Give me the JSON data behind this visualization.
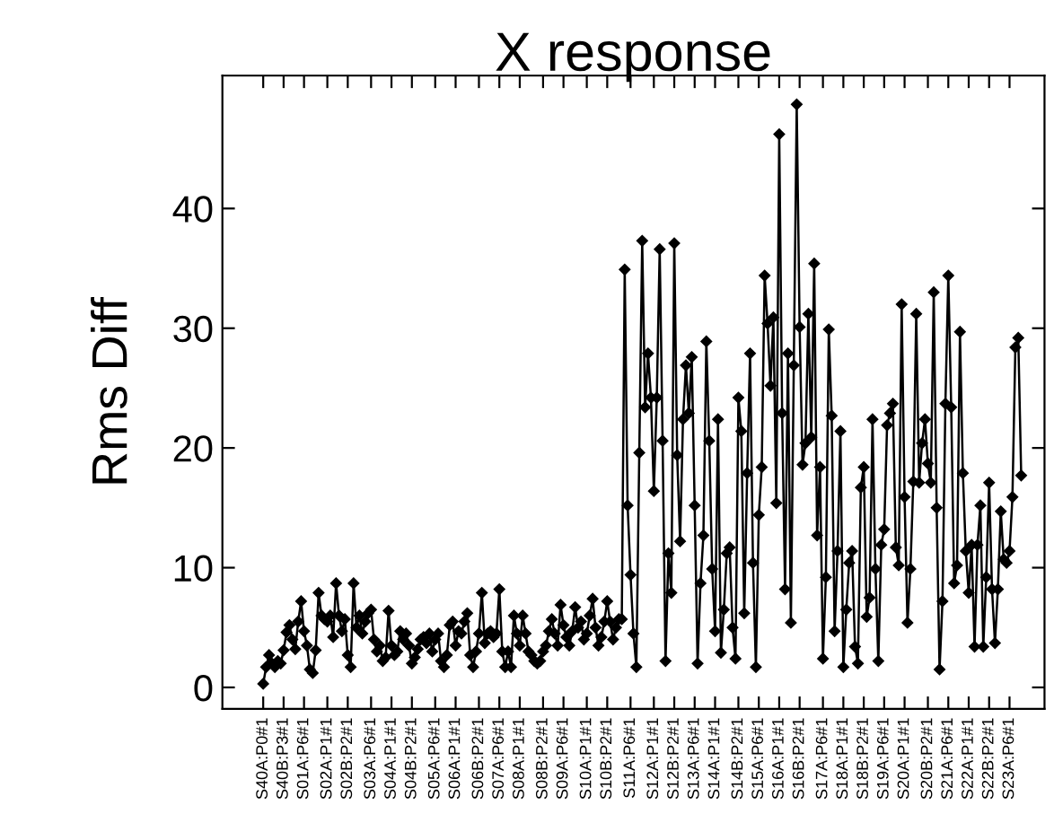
{
  "chart_data": {
    "type": "line",
    "title": "X response",
    "ylabel": "Rms Diff",
    "categories": [
      "S40A:P0#1",
      null,
      null,
      null,
      null,
      null,
      null,
      "S40B:P3#1",
      null,
      null,
      null,
      null,
      null,
      null,
      "S01A:P6#1",
      null,
      null,
      null,
      null,
      null,
      null,
      null,
      "S02A:P1#1",
      null,
      null,
      null,
      null,
      null,
      null,
      "S02B:P2#1",
      null,
      null,
      null,
      null,
      null,
      null,
      null,
      "S03A:P6#1",
      null,
      null,
      null,
      null,
      null,
      null,
      "S04A:P1#1",
      null,
      null,
      null,
      null,
      null,
      null,
      "S04B:P2#1",
      null,
      null,
      null,
      null,
      null,
      null,
      null,
      "S05A:P6#1",
      null,
      null,
      null,
      null,
      null,
      null,
      "S06A:P1#1",
      null,
      null,
      null,
      null,
      null,
      null,
      null,
      "S06B:P2#1",
      null,
      null,
      null,
      null,
      null,
      null,
      "S07A:P6#1",
      null,
      null,
      null,
      null,
      null,
      null,
      "S08A:P1#1",
      null,
      null,
      null,
      null,
      null,
      null,
      null,
      "S08B:P2#1",
      null,
      null,
      null,
      null,
      null,
      null,
      "S09A:P6#1",
      null,
      null,
      null,
      null,
      null,
      null,
      null,
      "S10A:P1#1",
      null,
      null,
      null,
      null,
      null,
      null,
      "S10B:P2#1",
      null,
      null,
      null,
      null,
      null,
      null,
      null,
      "S11A:P6#1",
      null,
      null,
      null,
      null,
      null,
      null,
      null,
      "S12A:P1#1",
      null,
      null,
      null,
      null,
      null,
      null,
      "S12B:P2#1",
      null,
      null,
      null,
      null,
      null,
      null,
      "S13A:P6#1",
      null,
      null,
      null,
      null,
      null,
      null,
      "S14A:P1#1",
      null,
      null,
      null,
      null,
      null,
      null,
      null,
      "S14B:P2#1",
      null,
      null,
      null,
      null,
      null,
      null,
      "S15A:P6#1",
      null,
      null,
      null,
      null,
      null,
      null,
      "S16A:P1#1",
      null,
      null,
      null,
      null,
      null,
      null,
      "S16B:P2#1",
      null,
      null,
      null,
      null,
      null,
      null,
      null,
      "S17A:P6#1",
      null,
      null,
      null,
      null,
      null,
      null,
      "S18A:P1#1",
      null,
      null,
      null,
      null,
      null,
      null,
      "S18B:P2#1",
      null,
      null,
      null,
      null,
      null,
      null,
      "S19A:P6#1",
      null,
      null,
      null,
      null,
      null,
      null,
      "S20A:P1#1",
      null,
      null,
      null,
      null,
      null,
      null,
      null,
      "S20B:P2#1",
      null,
      null,
      null,
      null,
      null,
      null,
      "S21A:P6#1",
      null,
      null,
      null,
      null,
      null,
      null,
      "S22A:P1#1",
      null,
      null,
      null,
      null,
      null,
      null,
      "S22B:P2#1",
      null,
      null,
      null,
      null,
      null,
      null,
      "S23A:P6#1",
      null,
      null,
      null,
      null
    ],
    "series": [
      {
        "color": "#000000",
        "values": [
          0.3,
          1.7,
          2.7,
          2.0,
          1.7,
          2.2,
          2.0,
          3.1,
          4.6,
          5.2,
          4.0,
          3.2,
          5.5,
          7.2,
          4.7,
          3.5,
          1.5,
          1.2,
          3.1,
          7.9,
          6.0,
          5.7,
          5.5,
          6.0,
          4.2,
          8.7,
          6.0,
          4.7,
          5.7,
          2.7,
          1.7,
          8.7,
          5.0,
          6.0,
          4.5,
          5.5,
          6.2,
          6.5,
          4.0,
          3.0,
          3.5,
          2.2,
          2.5,
          6.4,
          3.5,
          2.7,
          3.0,
          4.7,
          4.0,
          4.5,
          3.5,
          2.0,
          2.5,
          3.2,
          4.0,
          4.2,
          3.7,
          4.5,
          3.0,
          4.0,
          4.5,
          2.2,
          1.7,
          2.7,
          5.2,
          5.5,
          3.5,
          4.7,
          4.5,
          5.5,
          6.2,
          2.7,
          1.7,
          3.0,
          4.5,
          7.9,
          3.7,
          4.5,
          4.7,
          4.2,
          4.5,
          8.2,
          3.0,
          1.7,
          3.0,
          1.7,
          6.0,
          4.5,
          3.5,
          6.0,
          4.5,
          3.0,
          2.7,
          2.2,
          2.0,
          2.2,
          3.0,
          3.5,
          4.7,
          5.7,
          4.5,
          3.5,
          6.9,
          5.2,
          4.2,
          3.5,
          4.7,
          6.7,
          5.0,
          5.5,
          4.0,
          4.5,
          6.0,
          7.4,
          5.0,
          3.5,
          4.2,
          5.5,
          7.2,
          5.5,
          4.0,
          5.0,
          5.7,
          5.7,
          34.9,
          15.2,
          9.4,
          4.5,
          1.7,
          19.6,
          37.3,
          23.4,
          27.9,
          24.2,
          16.4,
          24.2,
          36.6,
          20.6,
          2.2,
          11.2,
          7.9,
          37.1,
          19.4,
          12.2,
          22.4,
          26.9,
          22.9,
          27.6,
          15.2,
          2.0,
          8.7,
          12.7,
          28.9,
          20.6,
          9.9,
          4.7,
          22.4,
          2.9,
          6.5,
          11.2,
          11.7,
          5.0,
          2.4,
          24.2,
          21.4,
          6.2,
          17.9,
          27.9,
          10.4,
          1.7,
          14.4,
          18.4,
          34.4,
          30.4,
          25.2,
          30.9,
          15.4,
          46.2,
          22.9,
          8.2,
          27.9,
          5.4,
          26.9,
          48.7,
          30.1,
          18.6,
          20.4,
          31.2,
          20.9,
          35.4,
          12.7,
          18.4,
          2.4,
          9.2,
          29.9,
          22.7,
          4.7,
          11.4,
          21.4,
          1.7,
          6.5,
          10.4,
          11.4,
          3.4,
          2.0,
          16.7,
          18.4,
          5.9,
          7.5,
          22.4,
          9.9,
          2.2,
          11.9,
          13.2,
          21.9,
          22.9,
          23.7,
          11.7,
          10.2,
          32.0,
          15.9,
          5.4,
          9.9,
          17.2,
          31.2,
          17.1,
          20.4,
          22.4,
          18.7,
          17.1,
          33.0,
          15.0,
          1.5,
          7.2,
          23.7,
          34.4,
          23.4,
          8.7,
          10.2,
          29.7,
          17.9,
          11.4,
          7.9,
          11.9,
          3.4,
          11.9,
          15.2,
          3.4,
          9.2,
          17.1,
          8.2,
          3.7,
          8.2,
          14.7,
          10.7,
          10.4,
          11.4,
          15.9,
          28.4,
          29.2,
          17.7
        ]
      }
    ],
    "marker": "diamond",
    "line_style": "solid",
    "ylim": [
      -1.8,
      51.1
    ],
    "yticks": [
      0,
      10,
      20,
      30,
      40
    ]
  }
}
